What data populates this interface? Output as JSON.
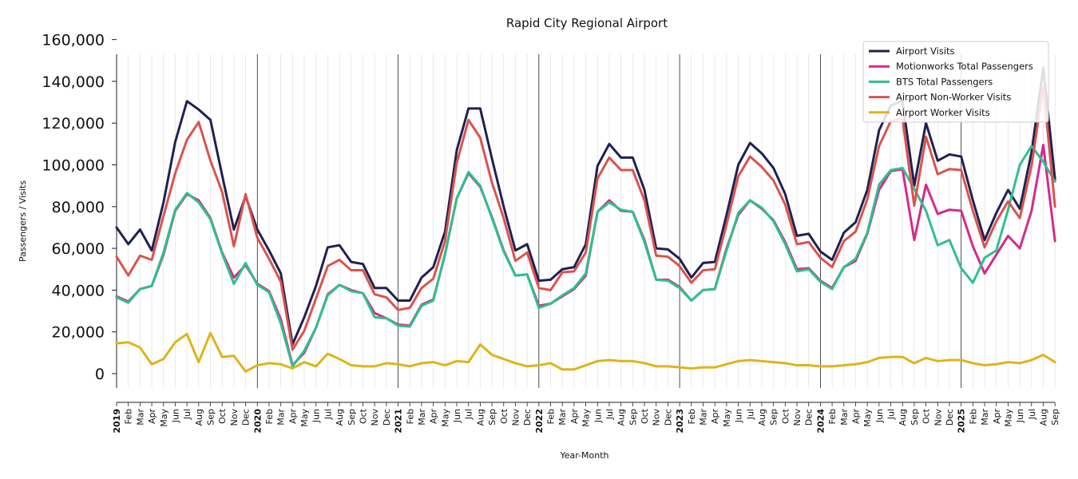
{
  "chart_data": {
    "type": "line",
    "title": "Rapid City Regional Airport",
    "xlabel": "Year-Month",
    "ylabel": "Passengers / Visits",
    "ylim": [
      0,
      160000
    ],
    "y_ticks": [
      0,
      20000,
      40000,
      60000,
      80000,
      100000,
      120000,
      140000,
      160000
    ],
    "y_tick_labels": [
      "0",
      "20,000",
      "40,000",
      "60,000",
      "80,000",
      "100,000",
      "120,000",
      "140,000",
      "160,000"
    ],
    "x_start": "2019-01",
    "x_end": "2025-09",
    "month_labels": [
      "Feb",
      "Mar",
      "Apr",
      "May",
      "Jun",
      "Jul",
      "Aug",
      "Sep",
      "Oct",
      "Nov",
      "Dec"
    ],
    "year_labels": [
      "2019",
      "2020",
      "2021",
      "2022",
      "2023",
      "2024",
      "2025"
    ],
    "legend_position": "top-right",
    "grid": "vertical month lines; year separators",
    "series": [
      {
        "name": "Airport Visits",
        "color": "#1f2150",
        "values": [
          70000,
          62000,
          69000,
          59000,
          82000,
          111000,
          130500,
          126500,
          121500,
          95000,
          69000,
          85000,
          69000,
          59000,
          48000,
          14000,
          27000,
          42000,
          60500,
          61500,
          53500,
          52500,
          41000,
          41000,
          35000,
          35000,
          46000,
          51000,
          68000,
          107000,
          127000,
          127000,
          103000,
          80000,
          59000,
          62000,
          44500,
          45000,
          50000,
          51000,
          62000,
          99500,
          110000,
          103500,
          103500,
          88000,
          60000,
          59500,
          55000,
          46000,
          53000,
          53500,
          76000,
          100000,
          110500,
          105500,
          98500,
          86000,
          66000,
          67000,
          58500,
          54500,
          67500,
          72500,
          88000,
          116500,
          128500,
          130500,
          90000,
          120000,
          102000,
          105000,
          104000,
          83000,
          64000,
          77000,
          88000,
          79000,
          106000,
          146500,
          93000
        ]
      },
      {
        "name": "Motionworks Total Passengers",
        "color": "#d42a8c",
        "values": [
          37000,
          34500,
          40500,
          42000,
          57000,
          78000,
          86000,
          83000,
          74500,
          58000,
          46000,
          52000,
          43000,
          39500,
          26000,
          4000,
          10000,
          22000,
          38000,
          42500,
          40000,
          38500,
          29000,
          26500,
          23500,
          23000,
          33000,
          35500,
          57000,
          84000,
          96000,
          89500,
          75000,
          59000,
          47000,
          47500,
          32500,
          33500,
          37000,
          40500,
          47000,
          77500,
          83000,
          78000,
          77500,
          64000,
          45000,
          45000,
          41500,
          35000,
          40000,
          40500,
          60000,
          76000,
          83000,
          79000,
          73500,
          63000,
          50000,
          50500,
          44500,
          41000,
          51000,
          54000,
          67000,
          88000,
          97000,
          98000,
          64000,
          90500,
          76500,
          78500,
          78000,
          61000,
          48000,
          57000,
          66000,
          60000,
          78000,
          109500,
          63500
        ]
      },
      {
        "name": "BTS Total Passengers",
        "color": "#2ec08e",
        "values": [
          36500,
          34000,
          40500,
          42000,
          58000,
          78500,
          86500,
          82000,
          74000,
          57500,
          43000,
          53000,
          42500,
          39000,
          24000,
          3500,
          11000,
          22000,
          37500,
          42500,
          39500,
          38500,
          27000,
          26500,
          23000,
          22500,
          32500,
          35000,
          57500,
          84000,
          96500,
          90000,
          74500,
          58500,
          47000,
          47500,
          31500,
          33500,
          37500,
          41000,
          48000,
          77500,
          82000,
          78500,
          77500,
          63000,
          45000,
          44500,
          41000,
          35000,
          40000,
          40500,
          59000,
          77000,
          83000,
          79500,
          73000,
          62000,
          49000,
          50000,
          44000,
          40500,
          51000,
          55000,
          67500,
          90500,
          97500,
          98500,
          88500,
          78000,
          61500,
          64000,
          50500,
          43500,
          55500,
          59000,
          78500,
          100000,
          109000,
          101500,
          92000
        ]
      },
      {
        "name": "Airport Non-Worker Visits",
        "color": "#d9534f",
        "values": [
          56000,
          47000,
          56500,
          54500,
          75500,
          96000,
          112000,
          120500,
          102000,
          87000,
          61000,
          86000,
          65000,
          55000,
          44000,
          11500,
          20500,
          36000,
          51500,
          54500,
          49500,
          49500,
          38000,
          36500,
          30500,
          31500,
          41000,
          45500,
          63500,
          101000,
          121500,
          113000,
          91500,
          74500,
          54000,
          58000,
          41000,
          40000,
          48500,
          49000,
          58000,
          93500,
          103500,
          97500,
          97500,
          83000,
          56500,
          56000,
          51500,
          43500,
          49500,
          50000,
          71500,
          94500,
          104000,
          99000,
          92500,
          81000,
          62000,
          63000,
          55500,
          51000,
          63500,
          68000,
          83500,
          109000,
          121000,
          122000,
          80500,
          113500,
          95500,
          98000,
          97500,
          78000,
          60500,
          73000,
          82500,
          74500,
          99500,
          137500,
          80000
        ]
      },
      {
        "name": "Airport Worker Visits",
        "color": "#e0b31a",
        "values": [
          14500,
          15000,
          12500,
          4500,
          7000,
          15000,
          19000,
          5500,
          19500,
          8000,
          8500,
          1000,
          4000,
          5000,
          4500,
          2500,
          5500,
          3500,
          9500,
          7000,
          4000,
          3500,
          3500,
          5000,
          4500,
          3500,
          5000,
          5500,
          4000,
          6000,
          5500,
          14000,
          9000,
          7000,
          5000,
          3500,
          4000,
          5000,
          2000,
          2000,
          4000,
          6000,
          6500,
          6000,
          6000,
          5000,
          3500,
          3500,
          3000,
          2500,
          3000,
          3000,
          4500,
          6000,
          6500,
          6000,
          5500,
          5000,
          4000,
          4000,
          3500,
          3500,
          4000,
          4500,
          5500,
          7500,
          8000,
          8000,
          5000,
          7500,
          6000,
          6500,
          6500,
          5000,
          4000,
          4500,
          5500,
          5000,
          6500,
          9000,
          5500
        ]
      }
    ]
  }
}
